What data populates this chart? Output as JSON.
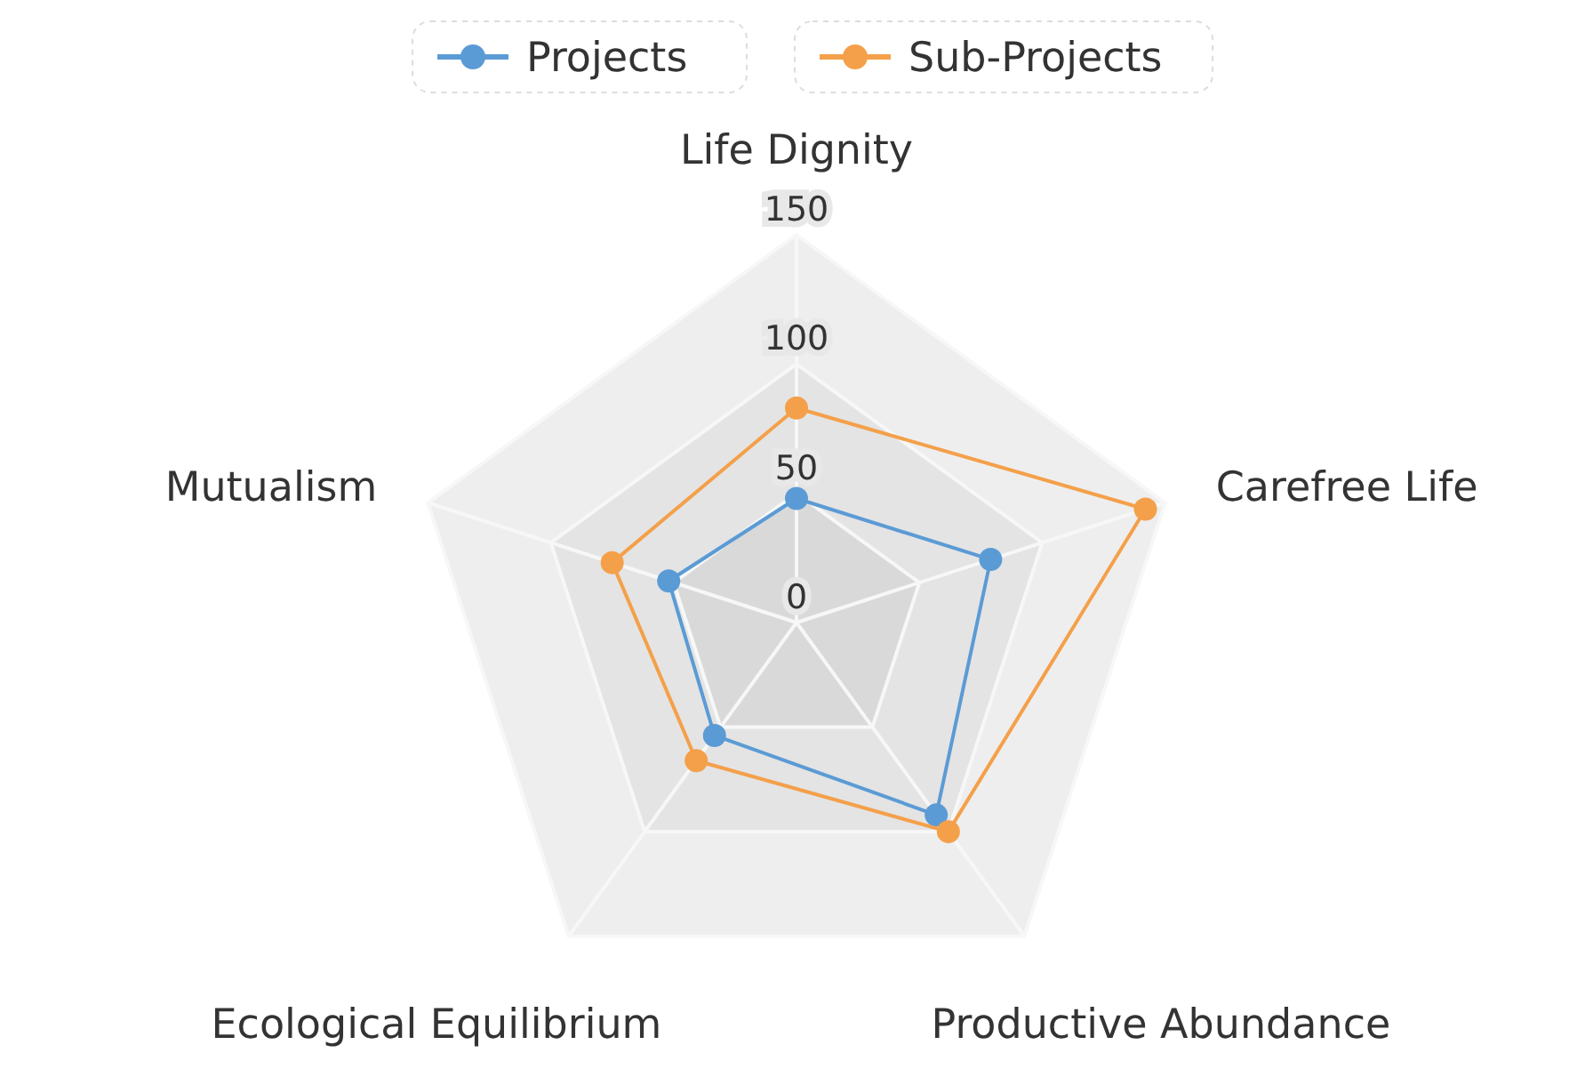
{
  "chart_data": {
    "type": "radar",
    "categories": [
      "Life Dignity",
      "Carefree Life",
      "Productive Abundance",
      "Ecological Equilibrium",
      "Mutualism"
    ],
    "series": [
      {
        "name": "Projects",
        "color": "#5b9bd5",
        "values": [
          48,
          79,
          92,
          54,
          52
        ]
      },
      {
        "name": "Sub-Projects",
        "color": "#f4a04a",
        "values": [
          83,
          142,
          100,
          66,
          75
        ]
      }
    ],
    "ylim": [
      0,
      150
    ],
    "yticks": [
      0,
      50,
      100,
      150
    ],
    "legend": "top",
    "marker": "circle",
    "line_style": "solid"
  }
}
